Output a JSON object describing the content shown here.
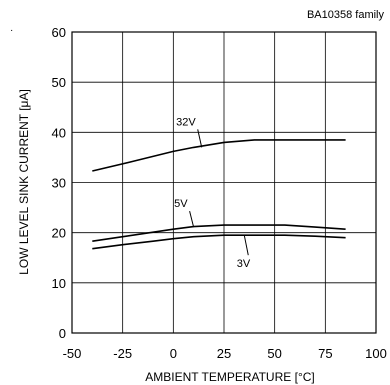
{
  "chart_data": {
    "type": "line",
    "title": "",
    "note": "BA10358  family",
    "xlabel": "AMBIENT TEMPERATURE [°C]",
    "ylabel": "LOW LEVEL  SINK CURRENT [μA]",
    "xlim": [
      -50,
      100
    ],
    "ylim": [
      0,
      60
    ],
    "xticks": [
      "-50",
      "-25",
      "0",
      "25",
      "50",
      "75",
      "100"
    ],
    "yticks": [
      "0",
      "10",
      "20",
      "30",
      "40",
      "50",
      "60"
    ],
    "grid": true,
    "legend": "none",
    "series": [
      {
        "name": "32V",
        "x": [
          -40,
          -20,
          0,
          10,
          25,
          40,
          55,
          70,
          85
        ],
        "y": [
          32.3,
          34.2,
          36.2,
          37.0,
          38.0,
          38.5,
          38.5,
          38.5,
          38.5
        ],
        "label_at": [
          14,
          37
        ]
      },
      {
        "name": "5V",
        "x": [
          -40,
          -25,
          -10,
          0,
          10,
          25,
          40,
          55,
          70,
          85
        ],
        "y": [
          18.3,
          19.2,
          20.1,
          20.7,
          21.2,
          21.5,
          21.5,
          21.5,
          21.1,
          20.7
        ],
        "label_at": [
          10,
          21.1
        ]
      },
      {
        "name": "3V",
        "x": [
          -40,
          -25,
          -10,
          0,
          10,
          25,
          40,
          55,
          70,
          85
        ],
        "y": [
          16.8,
          17.6,
          18.3,
          18.8,
          19.2,
          19.5,
          19.5,
          19.5,
          19.3,
          19.0
        ],
        "label_at": [
          35,
          19.5
        ]
      }
    ]
  }
}
